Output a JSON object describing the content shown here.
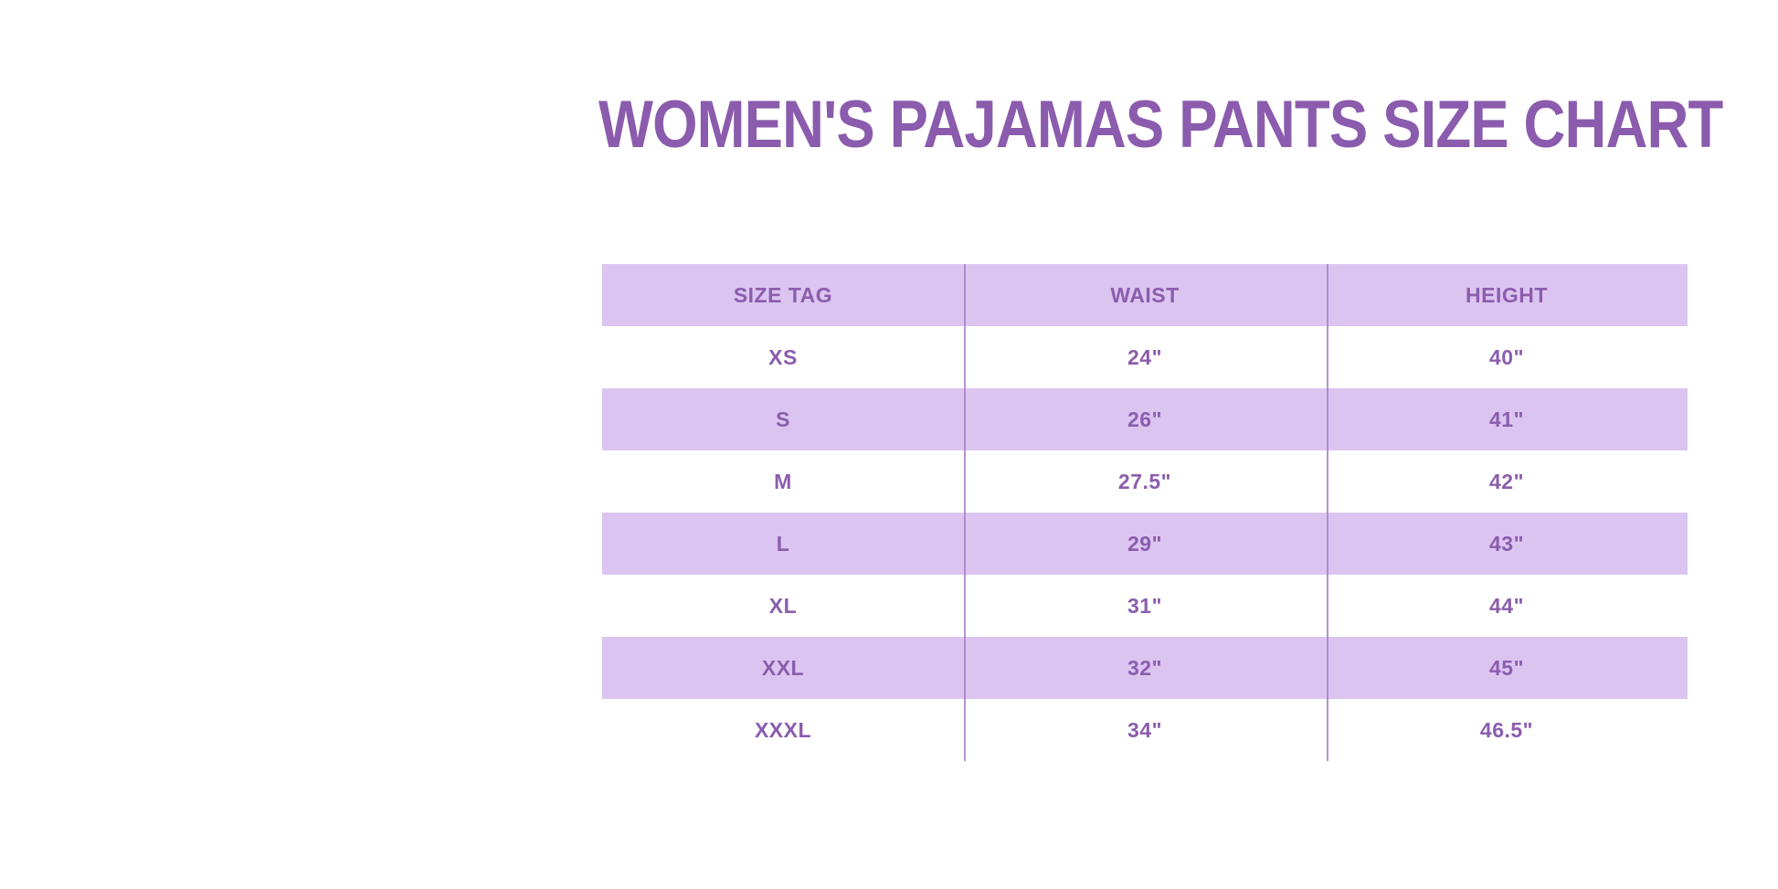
{
  "title": "WOMEN'S PAJAMAS PANTS SIZE CHART",
  "colors": {
    "title_text": "#8b5bad",
    "cell_text": "#8b5dad",
    "stripe": "#dcc4f0",
    "divider": "#a87fc9",
    "page_bg": "#ffffff"
  },
  "table": {
    "headers": [
      "SIZE TAG",
      "WAIST",
      "HEIGHT"
    ],
    "rows": [
      {
        "size_tag": "XS",
        "waist": "24\"",
        "height": "40\""
      },
      {
        "size_tag": "S",
        "waist": "26\"",
        "height": "41\""
      },
      {
        "size_tag": "M",
        "waist": "27.5\"",
        "height": "42\""
      },
      {
        "size_tag": "L",
        "waist": "29\"",
        "height": "43\""
      },
      {
        "size_tag": "XL",
        "waist": "31\"",
        "height": "44\""
      },
      {
        "size_tag": "XXL",
        "waist": "32\"",
        "height": "45\""
      },
      {
        "size_tag": "XXXL",
        "waist": "34\"",
        "height": "46.5\""
      }
    ]
  }
}
